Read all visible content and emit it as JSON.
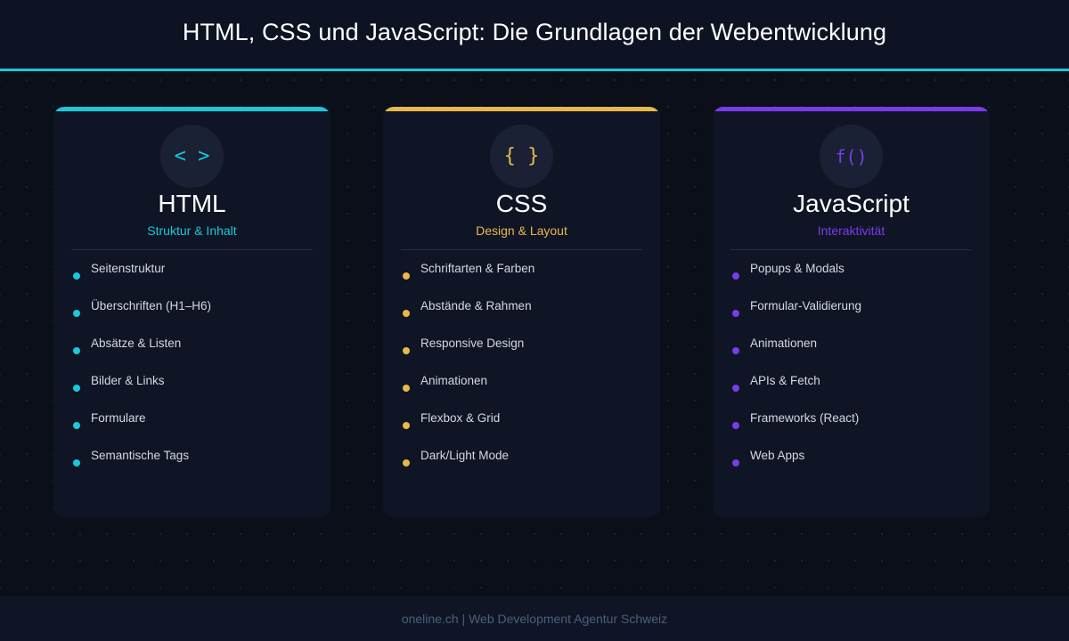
{
  "header": {
    "title": "HTML, CSS und JavaScript: Die Grundlagen der Webentwicklung"
  },
  "cards": [
    {
      "icon": "code-tags-icon",
      "icon_text": "< >",
      "accent": "#18c8dc",
      "title": "HTML",
      "subtitle": "Struktur & Inhalt",
      "items": [
        "Seitenstruktur",
        "Überschriften (H1–H6)",
        "Absätze & Listen",
        "Bilder & Links",
        "Formulare",
        "Semantische Tags"
      ]
    },
    {
      "icon": "curly-braces-icon",
      "icon_text": "{ }",
      "accent": "#e8b84a",
      "title": "CSS",
      "subtitle": "Design & Layout",
      "items": [
        "Schriftarten & Farben",
        "Abstände & Rahmen",
        "Responsive Design",
        "Animationen",
        "Flexbox & Grid",
        "Dark/Light Mode"
      ]
    },
    {
      "icon": "function-icon",
      "icon_text": "f()",
      "accent": "#7c3aed",
      "title": "JavaScript",
      "subtitle": "Interaktivität",
      "items": [
        "Popups & Modals",
        "Formular-Validierung",
        "Animationen",
        "APIs & Fetch",
        "Frameworks (React)",
        "Web Apps"
      ]
    }
  ],
  "footer": {
    "text": "oneline.ch | Web Development Agentur Schweiz"
  }
}
